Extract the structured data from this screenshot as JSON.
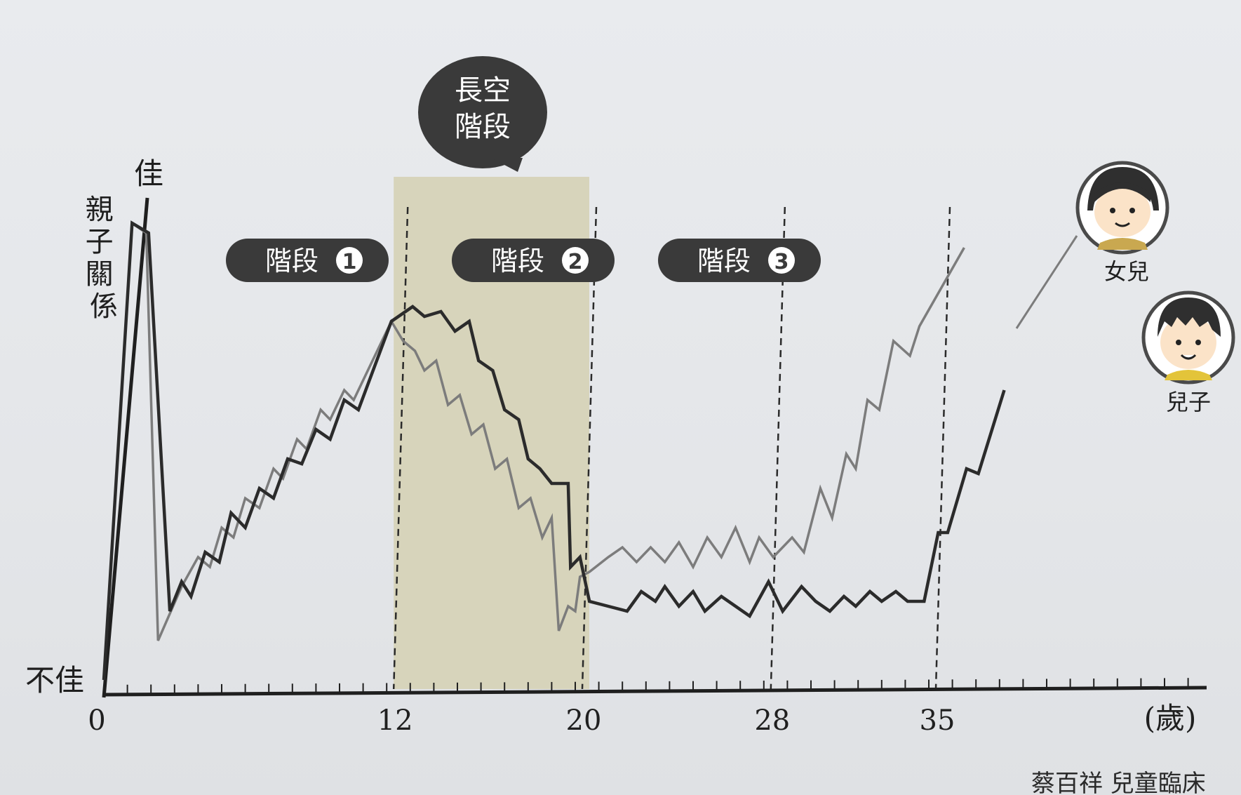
{
  "chart_data": {
    "type": "line",
    "ylabel": "親子關係",
    "y_top_label": "佳",
    "y_bottom_label": "不佳",
    "x_unit_label": "(歲)",
    "x_ticks": [
      "0",
      "12",
      "20",
      "28",
      "35"
    ],
    "xlim": [
      0,
      40
    ],
    "ylim": [
      0,
      10
    ],
    "stages": [
      {
        "label": "階段",
        "num": "1",
        "from": 0,
        "to": 12
      },
      {
        "label": "階段",
        "num": "2",
        "from": 12,
        "to": 20
      },
      {
        "label": "階段",
        "num": "3",
        "from": 20,
        "to": 28
      }
    ],
    "callout": {
      "line1": "長空",
      "line2": "階段"
    },
    "highlight_range": [
      12,
      20
    ],
    "dashed_lines": [
      12,
      20,
      28,
      35
    ],
    "series": [
      {
        "name": "女兒",
        "color": "#7c7c7c",
        "points": [
          [
            0,
            0.3
          ],
          [
            1.2,
            9.6
          ],
          [
            1.8,
            9.4
          ],
          [
            2.3,
            1.1
          ],
          [
            3.3,
            2.2
          ],
          [
            4.0,
            2.8
          ],
          [
            4.5,
            2.6
          ],
          [
            5.0,
            3.4
          ],
          [
            5.5,
            3.2
          ],
          [
            6.0,
            4.0
          ],
          [
            6.6,
            3.8
          ],
          [
            7.2,
            4.6
          ],
          [
            7.6,
            4.4
          ],
          [
            8.2,
            5.2
          ],
          [
            8.6,
            5.0
          ],
          [
            9.2,
            5.8
          ],
          [
            9.6,
            5.6
          ],
          [
            10.2,
            6.2
          ],
          [
            10.6,
            6.0
          ],
          [
            11.2,
            6.6
          ],
          [
            12.2,
            7.6
          ],
          [
            12.7,
            7.2
          ],
          [
            13.2,
            7.0
          ],
          [
            13.6,
            6.6
          ],
          [
            14.1,
            6.8
          ],
          [
            14.6,
            5.9
          ],
          [
            15.1,
            6.1
          ],
          [
            15.6,
            5.3
          ],
          [
            16.1,
            5.5
          ],
          [
            16.6,
            4.6
          ],
          [
            17.1,
            4.8
          ],
          [
            17.6,
            3.8
          ],
          [
            18.1,
            4.0
          ],
          [
            18.6,
            3.2
          ],
          [
            19.0,
            3.6
          ],
          [
            19.3,
            1.3
          ],
          [
            19.7,
            1.8
          ],
          [
            20.0,
            1.7
          ],
          [
            20.2,
            2.4
          ],
          [
            20.6,
            2.5
          ],
          [
            21.4,
            2.8
          ],
          [
            22.0,
            3.0
          ],
          [
            22.6,
            2.7
          ],
          [
            23.2,
            3.0
          ],
          [
            23.8,
            2.7
          ],
          [
            24.4,
            3.1
          ],
          [
            25.0,
            2.6
          ],
          [
            25.6,
            3.2
          ],
          [
            26.2,
            2.8
          ],
          [
            26.8,
            3.4
          ],
          [
            27.4,
            2.7
          ],
          [
            27.8,
            3.2
          ],
          [
            28.4,
            2.8
          ],
          [
            29.2,
            3.2
          ],
          [
            29.7,
            2.9
          ],
          [
            30.4,
            4.2
          ],
          [
            30.9,
            3.6
          ],
          [
            31.5,
            4.9
          ],
          [
            31.9,
            4.6
          ],
          [
            32.4,
            6.0
          ],
          [
            32.9,
            5.8
          ],
          [
            33.5,
            7.2
          ],
          [
            34.2,
            6.9
          ],
          [
            34.6,
            7.5
          ],
          [
            36.5,
            9.1
          ]
        ]
      },
      {
        "name": "兒子",
        "color": "#2b2b2b",
        "points": [
          [
            0,
            0.3
          ],
          [
            1.2,
            9.6
          ],
          [
            1.9,
            9.4
          ],
          [
            2.8,
            1.7
          ],
          [
            3.3,
            2.3
          ],
          [
            3.7,
            2.0
          ],
          [
            4.3,
            2.9
          ],
          [
            4.9,
            2.7
          ],
          [
            5.4,
            3.7
          ],
          [
            6.0,
            3.4
          ],
          [
            6.6,
            4.2
          ],
          [
            7.2,
            4.0
          ],
          [
            7.8,
            4.8
          ],
          [
            8.4,
            4.7
          ],
          [
            9.0,
            5.4
          ],
          [
            9.6,
            5.2
          ],
          [
            10.2,
            6.0
          ],
          [
            10.8,
            5.8
          ],
          [
            12.2,
            7.6
          ],
          [
            13.1,
            7.9
          ],
          [
            13.6,
            7.7
          ],
          [
            14.3,
            7.8
          ],
          [
            14.9,
            7.4
          ],
          [
            15.5,
            7.6
          ],
          [
            15.9,
            6.8
          ],
          [
            16.5,
            6.6
          ],
          [
            17.0,
            5.8
          ],
          [
            17.6,
            5.6
          ],
          [
            18.0,
            4.8
          ],
          [
            18.5,
            4.6
          ],
          [
            19.0,
            4.3
          ],
          [
            19.7,
            4.3
          ],
          [
            19.8,
            2.6
          ],
          [
            20.2,
            2.8
          ],
          [
            20.6,
            1.9
          ],
          [
            21.4,
            1.8
          ],
          [
            22.2,
            1.7
          ],
          [
            22.8,
            2.1
          ],
          [
            23.4,
            1.9
          ],
          [
            23.8,
            2.2
          ],
          [
            24.4,
            1.8
          ],
          [
            25.0,
            2.1
          ],
          [
            25.5,
            1.7
          ],
          [
            26.2,
            2.0
          ],
          [
            26.8,
            1.8
          ],
          [
            27.4,
            1.6
          ],
          [
            28.2,
            2.3
          ],
          [
            28.8,
            1.7
          ],
          [
            29.6,
            2.2
          ],
          [
            30.2,
            1.9
          ],
          [
            30.8,
            1.7
          ],
          [
            31.4,
            2.0
          ],
          [
            31.9,
            1.8
          ],
          [
            32.5,
            2.1
          ],
          [
            33.0,
            1.9
          ],
          [
            33.6,
            2.1
          ],
          [
            34.1,
            1.9
          ],
          [
            34.8,
            1.9
          ],
          [
            35.4,
            3.3
          ],
          [
            35.8,
            3.3
          ],
          [
            36.6,
            4.6
          ],
          [
            37.1,
            4.5
          ],
          [
            38.2,
            6.2
          ]
        ]
      }
    ]
  },
  "legend": {
    "daughter_label": "女兒",
    "son_label": "兒子"
  },
  "footer_text": "蔡百祥 兒童臨床"
}
